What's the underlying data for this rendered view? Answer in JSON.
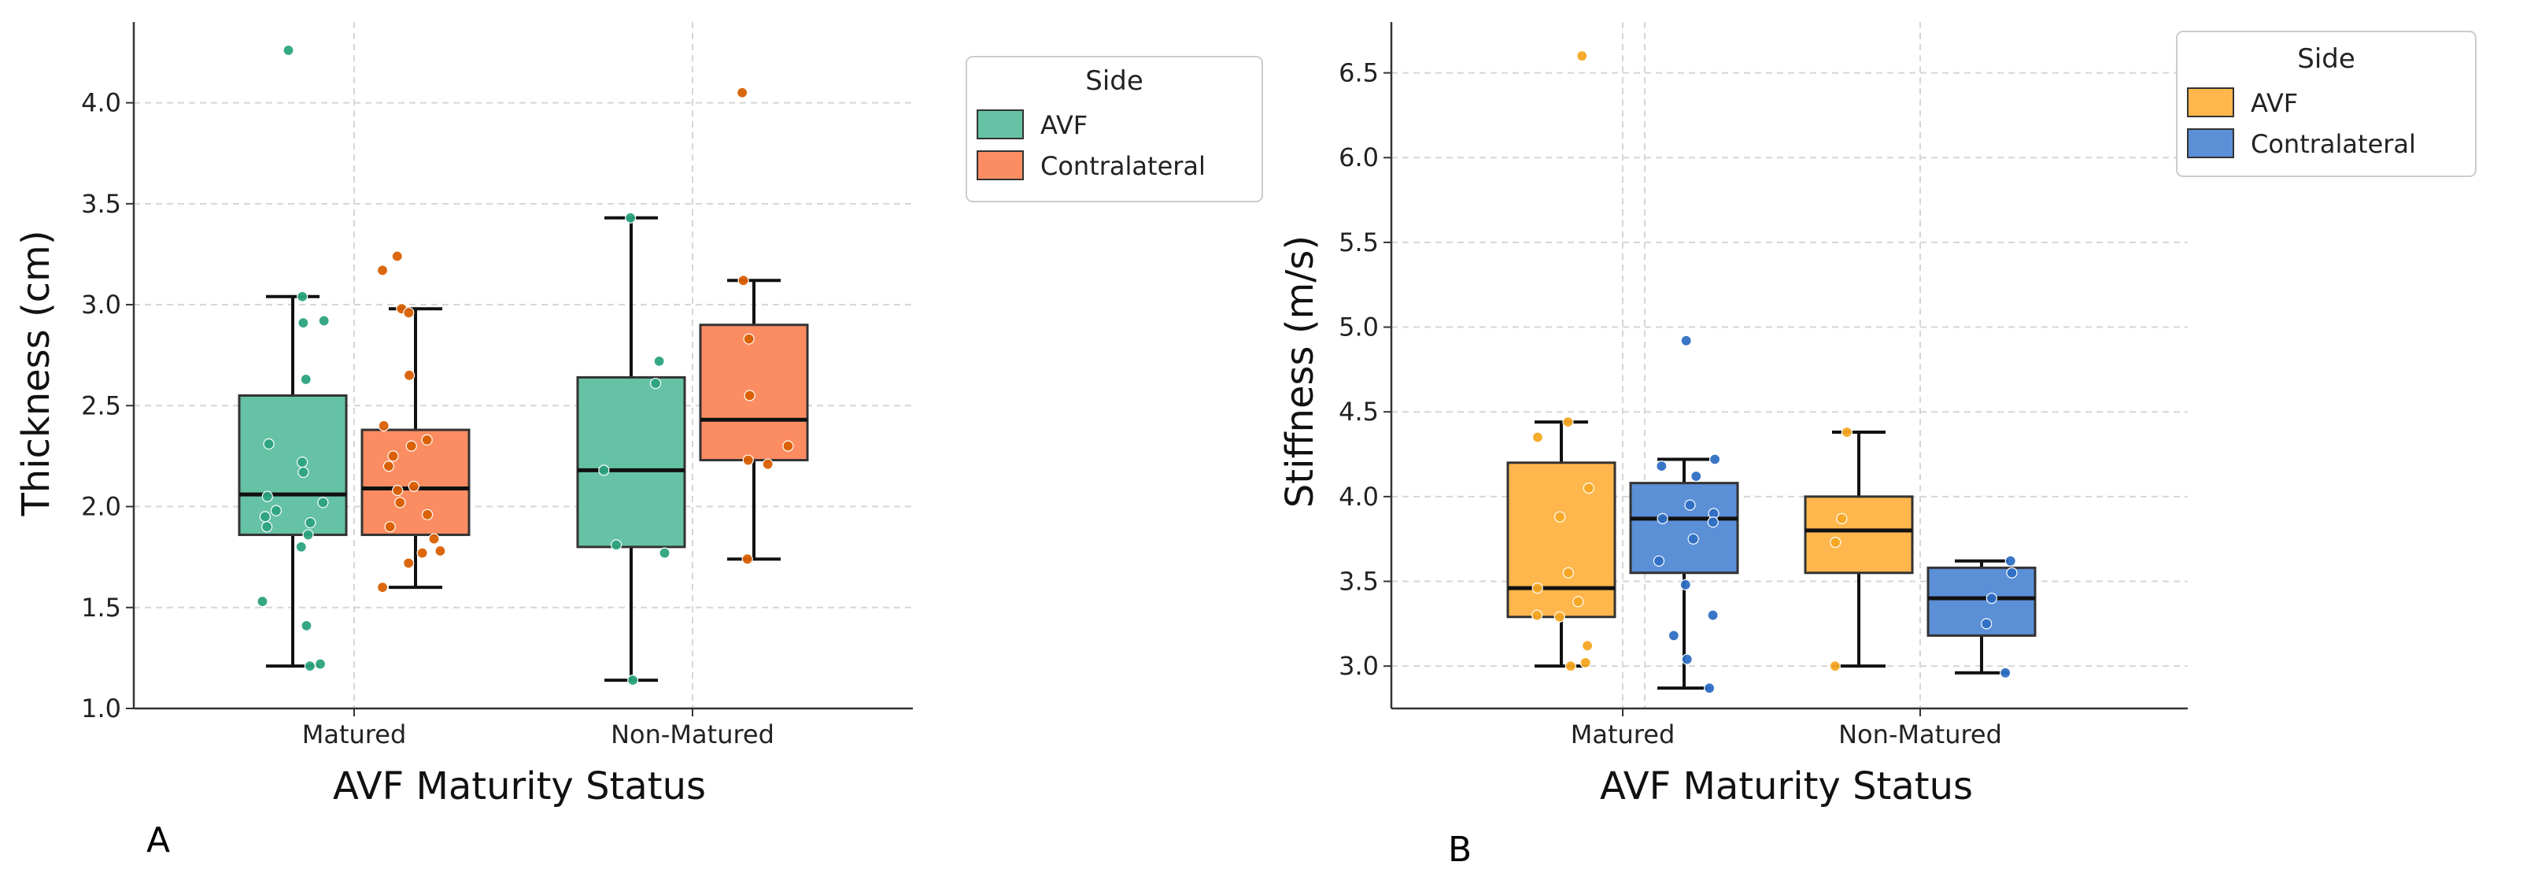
{
  "panels": {
    "a": {
      "letter": "A"
    },
    "b": {
      "letter": "B"
    }
  },
  "chart_data": [
    {
      "type": "box",
      "title": "",
      "xlabel": "AVF Maturity Status",
      "ylabel": "Thickness (cm)",
      "ylim": [
        1.0,
        4.4
      ],
      "yticks": [
        1.0,
        1.5,
        2.0,
        2.5,
        3.0,
        3.5,
        4.0
      ],
      "ytick_labels": [
        "1.0",
        "1.5",
        "2.0",
        "2.5",
        "3.0",
        "3.5",
        "4.0"
      ],
      "categories": [
        "Matured",
        "Non-Matured"
      ],
      "grid": true,
      "legend": {
        "title": "Side",
        "position": "outside-top-right",
        "entries": [
          "AVF",
          "Contralateral"
        ]
      },
      "series": [
        {
          "name": "AVF",
          "color": "#66c2a5",
          "point_color": "#2ca37e",
          "boxes": [
            {
              "category": "Matured",
              "whislo": 1.21,
              "q1": 1.86,
              "med": 2.06,
              "q3": 2.55,
              "whishi": 3.04,
              "fliers": [
                4.26
              ]
            },
            {
              "category": "Non-Matured",
              "whislo": 1.14,
              "q1": 1.8,
              "med": 2.18,
              "q3": 2.64,
              "whishi": 3.43,
              "fliers": []
            }
          ],
          "points": [
            {
              "category": "Matured",
              "values": [
                4.26,
                3.04,
                2.92,
                2.91,
                2.63,
                2.31,
                2.22,
                2.17,
                2.05,
                2.02,
                1.98,
                1.95,
                1.92,
                1.9,
                1.86,
                1.8,
                1.53,
                1.41,
                1.22,
                1.21
              ]
            },
            {
              "category": "Non-Matured",
              "values": [
                3.43,
                2.72,
                2.61,
                2.18,
                1.81,
                1.77,
                1.14
              ]
            }
          ]
        },
        {
          "name": "Contralateral",
          "color": "#fc8d62",
          "point_color": "#d95f02",
          "boxes": [
            {
              "category": "Matured",
              "whislo": 1.6,
              "q1": 1.86,
              "med": 2.09,
              "q3": 2.38,
              "whishi": 2.98,
              "fliers": [
                3.17,
                3.24
              ]
            },
            {
              "category": "Non-Matured",
              "whislo": 1.74,
              "q1": 2.23,
              "med": 2.43,
              "q3": 2.9,
              "whishi": 3.12,
              "fliers": [
                4.05
              ]
            }
          ],
          "points": [
            {
              "category": "Matured",
              "values": [
                3.24,
                3.17,
                2.98,
                2.96,
                2.65,
                2.4,
                2.33,
                2.3,
                2.25,
                2.2,
                2.1,
                2.08,
                2.02,
                1.96,
                1.9,
                1.84,
                1.78,
                1.77,
                1.72,
                1.6
              ]
            },
            {
              "category": "Non-Matured",
              "values": [
                4.05,
                3.12,
                2.83,
                2.55,
                2.3,
                2.23,
                2.21,
                1.74
              ]
            }
          ]
        }
      ]
    },
    {
      "type": "box",
      "title": "",
      "xlabel": "AVF Maturity Status",
      "ylabel": "Stiffness (m/s)",
      "ylim": [
        2.75,
        6.8
      ],
      "yticks": [
        3.0,
        3.5,
        4.0,
        4.5,
        5.0,
        5.5,
        6.0,
        6.5
      ],
      "ytick_labels": [
        "3.0",
        "3.5",
        "4.0",
        "4.5",
        "5.0",
        "5.5",
        "6.0",
        "6.5"
      ],
      "categories": [
        "Matured",
        "Non-Matured"
      ],
      "grid": true,
      "legend": {
        "title": "Side",
        "position": "outside-top-right",
        "entries": [
          "AVF",
          "Contralateral"
        ]
      },
      "series": [
        {
          "name": "AVF",
          "color": "#ffb74d",
          "point_color": "#f5a623",
          "boxes": [
            {
              "category": "Matured",
              "whislo": 3.0,
              "q1": 3.29,
              "med": 3.46,
              "q3": 4.2,
              "whishi": 4.44,
              "fliers": [
                6.6
              ]
            },
            {
              "category": "Non-Matured",
              "whislo": 3.0,
              "q1": 3.55,
              "med": 3.8,
              "q3": 4.0,
              "whishi": 4.38,
              "fliers": []
            }
          ],
          "points": [
            {
              "category": "Matured",
              "values": [
                6.6,
                4.44,
                4.35,
                4.05,
                3.88,
                3.55,
                3.46,
                3.38,
                3.3,
                3.29,
                3.12,
                3.02,
                3.0
              ]
            },
            {
              "category": "Non-Matured",
              "values": [
                4.38,
                3.87,
                3.73,
                3.0
              ]
            }
          ]
        },
        {
          "name": "Contralateral",
          "color": "#5b8fd6",
          "point_color": "#2f6fc4",
          "boxes": [
            {
              "category": "Matured",
              "whislo": 2.87,
              "q1": 3.55,
              "med": 3.87,
              "q3": 4.08,
              "whishi": 4.22,
              "fliers": [
                4.92
              ]
            },
            {
              "category": "Non-Matured",
              "whislo": 2.96,
              "q1": 3.18,
              "med": 3.4,
              "q3": 3.58,
              "whishi": 3.62,
              "fliers": []
            }
          ],
          "points": [
            {
              "category": "Matured",
              "values": [
                4.92,
                4.22,
                4.18,
                4.12,
                3.95,
                3.9,
                3.87,
                3.85,
                3.75,
                3.62,
                3.48,
                3.3,
                3.18,
                3.04,
                2.87
              ]
            },
            {
              "category": "Non-Matured",
              "values": [
                3.62,
                3.55,
                3.4,
                3.25,
                2.96
              ]
            }
          ]
        }
      ]
    }
  ]
}
